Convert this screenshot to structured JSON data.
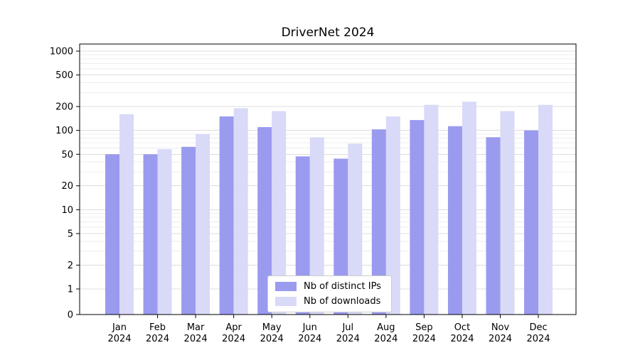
{
  "chart_data": {
    "type": "bar",
    "title": "DriverNet 2024",
    "categories": [
      "Jan",
      "Feb",
      "Mar",
      "Apr",
      "May",
      "Jun",
      "Jul",
      "Aug",
      "Sep",
      "Oct",
      "Nov",
      "Dec"
    ],
    "category_year": "2024",
    "series": [
      {
        "name": "Nb of distinct IPs",
        "color": "#9a9aef",
        "values": [
          50,
          50,
          62,
          150,
          110,
          47,
          44,
          103,
          135,
          113,
          82,
          100
        ]
      },
      {
        "name": "Nb of downloads",
        "color": "#d9d9f8",
        "values": [
          160,
          58,
          90,
          190,
          175,
          82,
          68,
          150,
          210,
          230,
          175,
          210
        ]
      }
    ],
    "ylabel": "",
    "xlabel": "",
    "yscale": "log-like",
    "yticks": [
      0,
      1,
      2,
      5,
      10,
      20,
      50,
      100,
      200,
      500,
      1000
    ],
    "ylim": [
      0,
      1200
    ],
    "grid": "on",
    "legend_position": "bottom-center-inside"
  },
  "colors": {
    "major_grid": "#dcdcdc",
    "minor_grid": "#ededed",
    "spine": "#000000",
    "text": "#000000"
  }
}
